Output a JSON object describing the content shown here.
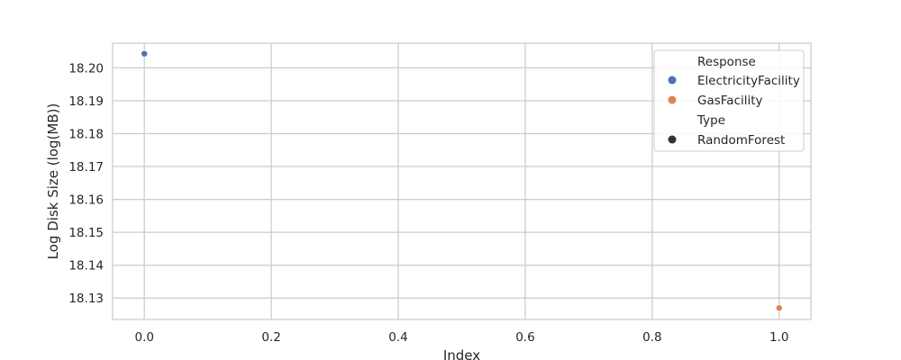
{
  "chart_data": {
    "type": "scatter",
    "title": "",
    "xlabel": "Index",
    "ylabel": "Log Disk Size (log(MB))",
    "xlim": [
      -0.05,
      1.05
    ],
    "ylim": [
      18.1235,
      18.2075
    ],
    "xticks": [
      0.0,
      0.2,
      0.4,
      0.6,
      0.8,
      1.0
    ],
    "xtick_labels": [
      "0.0",
      "0.2",
      "0.4",
      "0.6",
      "0.8",
      "1.0"
    ],
    "yticks": [
      18.13,
      18.14,
      18.15,
      18.16,
      18.17,
      18.18,
      18.19,
      18.2
    ],
    "ytick_labels": [
      "18.13",
      "18.14",
      "18.15",
      "18.16",
      "18.17",
      "18.18",
      "18.19",
      "18.20"
    ],
    "grid": true,
    "legend_placement": "top-right",
    "series": [
      {
        "name": "ElectricityFacility",
        "type": "RandomForest",
        "color": "#4c72b0",
        "points": [
          {
            "x": 0.0,
            "y": 18.2043
          }
        ]
      },
      {
        "name": "GasFacility",
        "type": "RandomForest",
        "color": "#dd8452",
        "points": [
          {
            "x": 1.0,
            "y": 18.127
          }
        ]
      }
    ],
    "legend": {
      "hue_title": "Response",
      "style_title": "Type",
      "style_entries": [
        {
          "label": "RandomForest",
          "color": "#333333"
        }
      ]
    }
  }
}
